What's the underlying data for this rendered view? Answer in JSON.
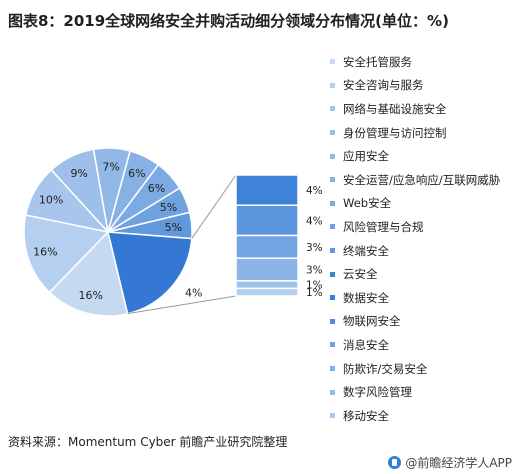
{
  "title": "图表8：2019全球网络安全并购活动细分领域分布情况(单位：%)",
  "source": "资料来源：Momentum Cyber  前瞻产业研究院整理",
  "footer_brand": "@前瞻经济学人APP",
  "chart_data": {
    "type": "pie",
    "categories": [
      "安全托管服务",
      "安全咨询与服务",
      "网络与基础设施安全",
      "身份管理与访问控制",
      "应用安全",
      "安全运营/应急响应/互联网威胁",
      "Web安全",
      "风险管理与合规",
      "终端安全",
      "云安全",
      "数据安全",
      "物联网安全",
      "消息安全",
      "防欺诈/交易安全",
      "数字风险管理",
      "移动安全"
    ],
    "values": [
      16,
      16,
      10,
      9,
      7,
      6,
      6,
      5,
      5,
      4,
      4,
      4,
      3,
      3,
      1,
      1
    ],
    "data_labels": [
      "16%",
      "16%",
      "10%",
      "9%",
      "7%",
      "6%",
      "6%",
      "5%",
      "5%",
      "4%",
      "4%",
      "4%",
      "3%",
      "3%",
      "1%",
      "1%"
    ],
    "colors": [
      "#c5d9f1",
      "#b5cff0",
      "#a8c6ed",
      "#9dbfea",
      "#92b8e8",
      "#87b1e5",
      "#7caae2",
      "#6fa2df",
      "#6199dc",
      "#3f83d8",
      "#3a7fd6",
      "#4c8de0",
      "#6aa2e6",
      "#7eb0ea",
      "#8fbbee",
      "#a9cbf2"
    ],
    "exploded": {
      "bar_values": [
        4,
        4,
        3,
        3,
        1,
        1
      ],
      "bar_labels": [
        "4%",
        "4%",
        "3%",
        "3%",
        "1%",
        "1%"
      ]
    },
    "legend_position": "right"
  }
}
